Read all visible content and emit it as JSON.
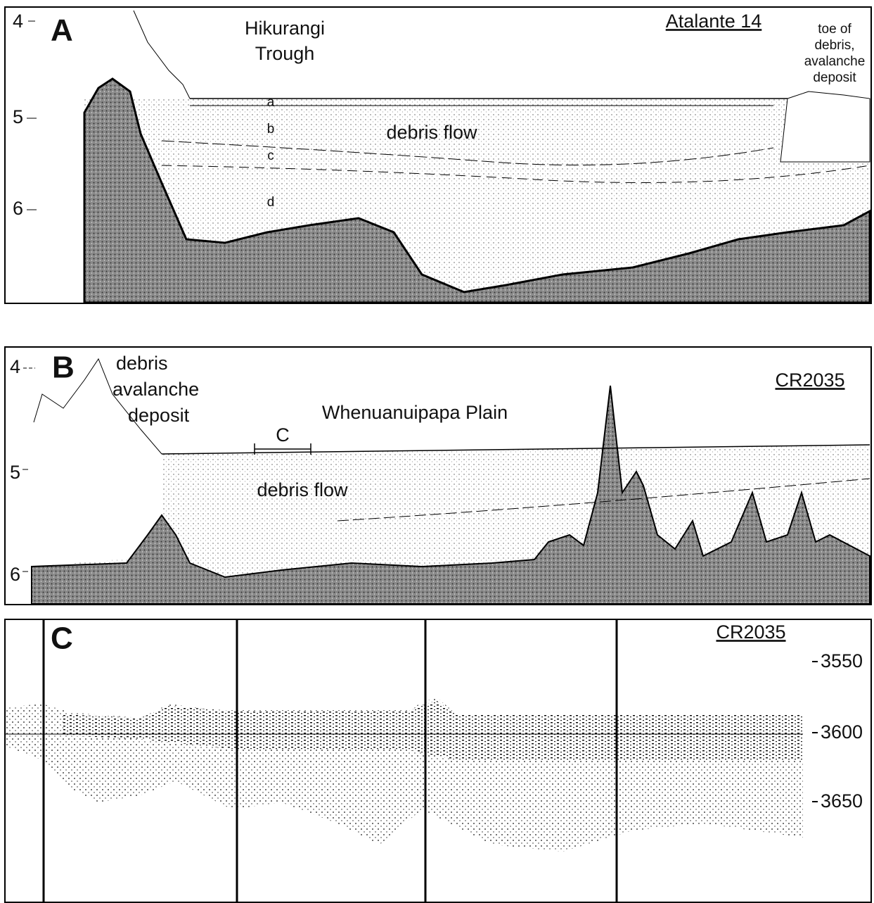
{
  "panel_a": {
    "label": "A",
    "depth_labels": [
      "4",
      "5",
      "6"
    ],
    "cruise": "Atalante 14",
    "title_lines": [
      "Hikurangi",
      "Trough"
    ],
    "toe_lines": [
      "toe of",
      "debris,",
      "avalanche",
      "deposit"
    ],
    "units": [
      "a",
      "b",
      "c",
      "d"
    ],
    "debris_flow": "debris flow"
  },
  "panel_b": {
    "label": "B",
    "depth_labels": [
      "4",
      "5",
      "6"
    ],
    "cruise": "CR2035",
    "avalanche_lines": [
      "debris",
      "avalanche",
      "deposit"
    ],
    "plain": "Whenuanuipapa Plain",
    "inset": "C",
    "debris_flow": "debris flow"
  },
  "panel_c": {
    "label": "C",
    "cruise": "CR2035",
    "depth_labels": [
      "3550",
      "3600",
      "3650"
    ]
  }
}
